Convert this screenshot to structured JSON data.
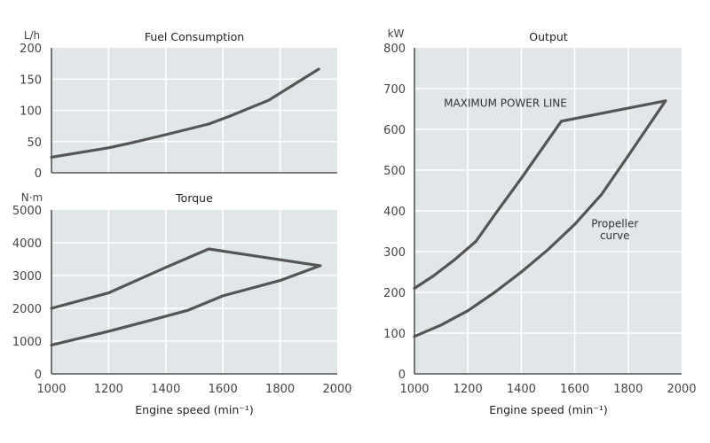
{
  "chart_data": [
    {
      "id": "fuel",
      "type": "line",
      "title": "Fuel Consumption",
      "ylabel": "L/h",
      "xlabel": "",
      "xlim": [
        1000,
        2000
      ],
      "ylim": [
        0,
        200
      ],
      "xticks": [],
      "yticks": [
        "0",
        "50",
        "100",
        "150",
        "200"
      ],
      "grid": true,
      "series": [
        {
          "name": "Fuel consumption",
          "x": [
            1000,
            1200,
            1280,
            1400,
            1550,
            1620,
            1760,
            1935
          ],
          "y": [
            25,
            40,
            48,
            61,
            78,
            90,
            116,
            166
          ]
        }
      ]
    },
    {
      "id": "torque",
      "type": "line",
      "title": "Torque",
      "ylabel": "N·m",
      "xlabel": "Engine speed (min⁻¹)",
      "xlim": [
        1000,
        2000
      ],
      "ylim": [
        0,
        5000
      ],
      "xticks": [
        "1000",
        "1200",
        "1400",
        "1600",
        "1800",
        "2000"
      ],
      "yticks": [
        "0",
        "1000",
        "2000",
        "3000",
        "4000",
        "5000"
      ],
      "grid": true,
      "series": [
        {
          "name": "Maximum torque",
          "x": [
            1000,
            1200,
            1400,
            1550,
            1940
          ],
          "y": [
            2000,
            2470,
            3250,
            3810,
            3300
          ]
        },
        {
          "name": "Propeller torque",
          "x": [
            1000,
            1200,
            1280,
            1400,
            1480,
            1600,
            1800,
            1940
          ],
          "y": [
            880,
            1300,
            1480,
            1760,
            1950,
            2380,
            2850,
            3300
          ]
        }
      ]
    },
    {
      "id": "output",
      "type": "line",
      "title": "Output",
      "ylabel": "kW",
      "xlabel": "Engine speed (min⁻¹)",
      "xlim": [
        1000,
        2000
      ],
      "ylim": [
        0,
        800
      ],
      "xticks": [
        "1000",
        "1200",
        "1400",
        "1600",
        "1800",
        "2000"
      ],
      "yticks": [
        "0",
        "100",
        "200",
        "300",
        "400",
        "500",
        "600",
        "700",
        "800"
      ],
      "grid": true,
      "annotations": [
        {
          "text": "MAXIMUM POWER LINE",
          "x": 1110,
          "y": 655
        },
        {
          "text": "Propeller",
          "x": 1750,
          "y": 360
        },
        {
          "text": "curve",
          "x": 1750,
          "y": 330
        }
      ],
      "series": [
        {
          "name": "Maximum power line",
          "x": [
            1000,
            1070,
            1150,
            1230,
            1300,
            1400,
            1550,
            1940
          ],
          "y": [
            210,
            240,
            280,
            325,
            390,
            480,
            620,
            670
          ]
        },
        {
          "name": "Propeller curve",
          "x": [
            1000,
            1100,
            1200,
            1300,
            1400,
            1500,
            1600,
            1700,
            1800,
            1940
          ],
          "y": [
            92,
            120,
            155,
            200,
            250,
            305,
            367,
            440,
            535,
            670
          ]
        }
      ]
    }
  ]
}
